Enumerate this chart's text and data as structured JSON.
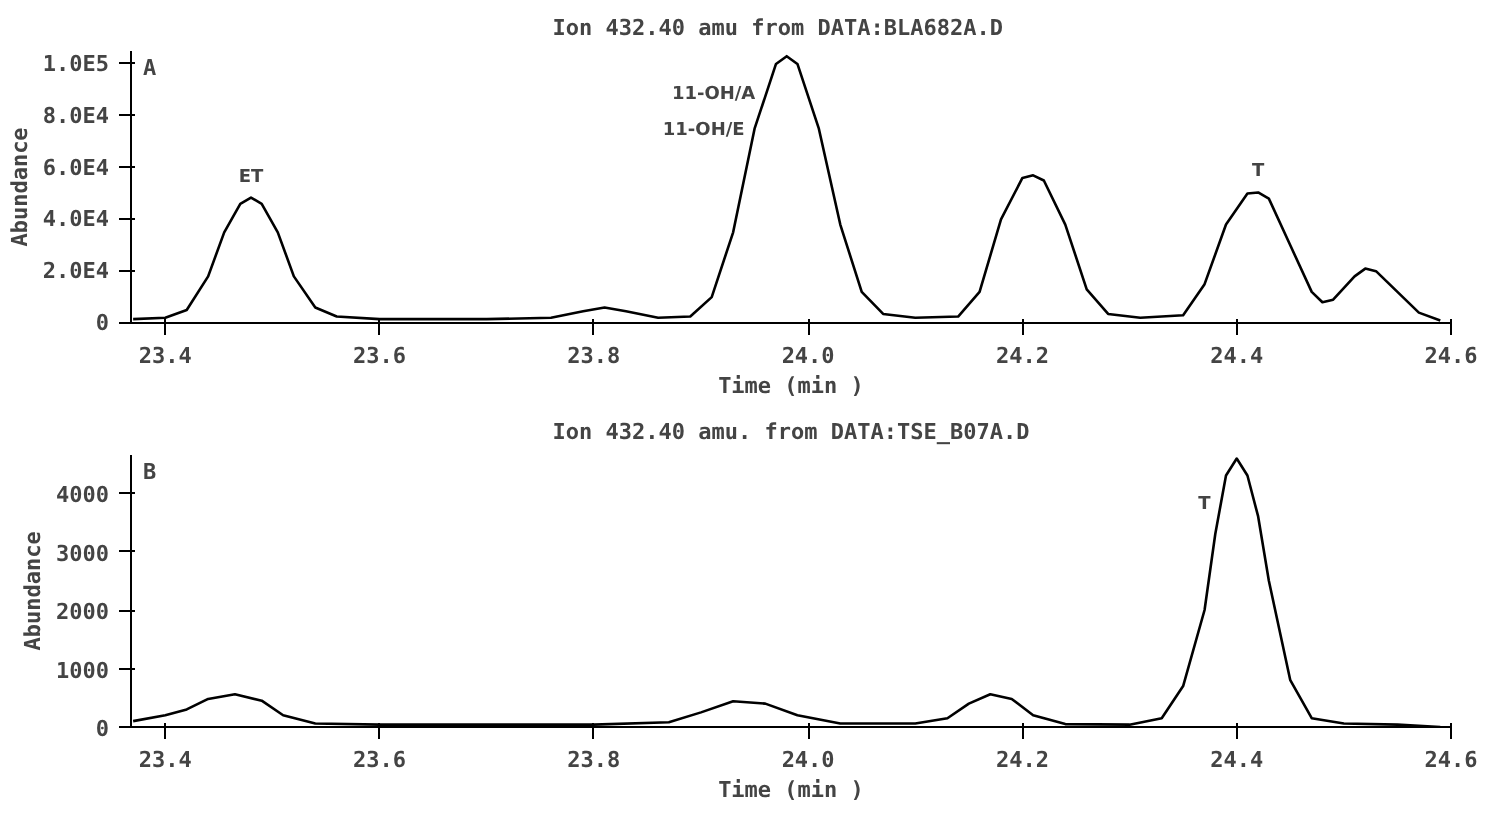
{
  "chart_data": [
    {
      "type": "line",
      "title": "Ion 432.40 amu   from DATA:BLA682A.D",
      "xlabel": "Time (min )",
      "ylabel": "Abundance",
      "annotations": [
        "A",
        {
          "text": "ET",
          "x": 23.48,
          "y": 48400
        },
        {
          "text": "11-OH/A",
          "x": 23.96,
          "y": 88000
        },
        {
          "text": "11-OH/E",
          "x": 23.95,
          "y": 74000
        },
        {
          "text": "T",
          "x": 24.42,
          "y": 50400
        }
      ],
      "series": [
        {
          "color": "#000000",
          "x": [
            23.37,
            23.4,
            23.42,
            23.44,
            23.455,
            23.47,
            23.48,
            23.49,
            23.505,
            23.52,
            23.54,
            23.56,
            23.6,
            23.7,
            23.76,
            23.79,
            23.81,
            23.83,
            23.86,
            23.89,
            23.91,
            23.93,
            23.95,
            23.97,
            23.98,
            23.99,
            24.01,
            24.03,
            24.05,
            24.07,
            24.1,
            24.14,
            24.16,
            24.18,
            24.2,
            24.21,
            24.22,
            24.24,
            24.26,
            24.28,
            24.31,
            24.35,
            24.37,
            24.39,
            24.41,
            24.42,
            24.43,
            24.45,
            24.47,
            24.48,
            24.49,
            24.51,
            24.52,
            24.53,
            24.55,
            24.57,
            24.59
          ],
          "values": [
            1500,
            2000,
            5000,
            18000,
            35000,
            46000,
            48400,
            46000,
            35000,
            18000,
            6000,
            2500,
            1500,
            1500,
            2000,
            4500,
            6000,
            4500,
            2000,
            2500,
            10000,
            35000,
            75000,
            100000,
            103000,
            100000,
            75000,
            38000,
            12000,
            3500,
            2000,
            2500,
            12000,
            40000,
            56000,
            57000,
            55000,
            38000,
            13000,
            3500,
            2000,
            3000,
            15000,
            38000,
            50000,
            50400,
            48000,
            30000,
            12000,
            8000,
            9000,
            18000,
            21000,
            20000,
            12000,
            4000,
            1000
          ]
        }
      ],
      "xlim": [
        23.368,
        24.6
      ],
      "xticks": [
        {
          "value": 23.4,
          "label": "23.4"
        },
        {
          "value": 23.6,
          "label": "23.6"
        },
        {
          "value": 23.8,
          "label": "23.8"
        },
        {
          "value": 24.0,
          "label": "24.0"
        },
        {
          "value": 24.2,
          "label": "24.2"
        },
        {
          "value": 24.4,
          "label": "24.4"
        },
        {
          "value": 24.6,
          "label": "24.6"
        }
      ],
      "ylim": [
        0,
        105000
      ],
      "yticks": [
        0,
        {
          "value": 20000,
          "label": "2.0E4"
        },
        {
          "value": 40000,
          "label": "4.0E4"
        },
        {
          "value": 60000,
          "label": "6.0E4"
        },
        {
          "value": 80000,
          "label": "8.0E4"
        },
        {
          "value": 100000,
          "label": "1.0E5"
        }
      ],
      "grid": false,
      "marker": "none",
      "line_style": "solid"
    },
    {
      "type": "line",
      "title": "Ion 432.40 amu. from DATA:TSE_B07A.D",
      "xlabel": "Time (min )",
      "ylabel": "Abundance",
      "annotations": [
        "B",
        {
          "text": "T",
          "x": 24.385,
          "y": 3800
        }
      ],
      "series": [
        {
          "color": "#000000",
          "x": [
            23.37,
            23.4,
            23.42,
            23.44,
            23.465,
            23.49,
            23.51,
            23.54,
            23.6,
            23.8,
            23.87,
            23.9,
            23.93,
            23.96,
            23.99,
            24.03,
            24.1,
            24.13,
            24.15,
            24.17,
            24.19,
            24.21,
            24.24,
            24.3,
            24.33,
            24.35,
            24.37,
            24.38,
            24.39,
            24.4,
            24.41,
            24.42,
            24.43,
            24.45,
            24.47,
            24.5,
            24.55,
            24.59
          ],
          "values": [
            100,
            200,
            300,
            480,
            560,
            450,
            200,
            60,
            40,
            40,
            80,
            250,
            440,
            400,
            200,
            60,
            60,
            150,
            400,
            560,
            480,
            200,
            50,
            40,
            150,
            700,
            2000,
            3300,
            4300,
            4590,
            4300,
            3600,
            2500,
            800,
            150,
            60,
            40,
            0
          ]
        }
      ],
      "xlim": [
        23.368,
        24.6
      ],
      "xticks": [
        {
          "value": 23.4,
          "label": "23.4"
        },
        {
          "value": 23.6,
          "label": "23.6"
        },
        {
          "value": 23.8,
          "label": "23.8"
        },
        {
          "value": 24.0,
          "label": "24.0"
        },
        {
          "value": 24.2,
          "label": "24.2"
        },
        {
          "value": 24.4,
          "label": "24.4"
        },
        {
          "value": 24.6,
          "label": "24.6"
        }
      ],
      "ylim": [
        0,
        4650
      ],
      "yticks": [
        0,
        1000,
        2000,
        3000,
        4000
      ],
      "grid": false,
      "marker": "none",
      "line_style": "solid"
    }
  ]
}
